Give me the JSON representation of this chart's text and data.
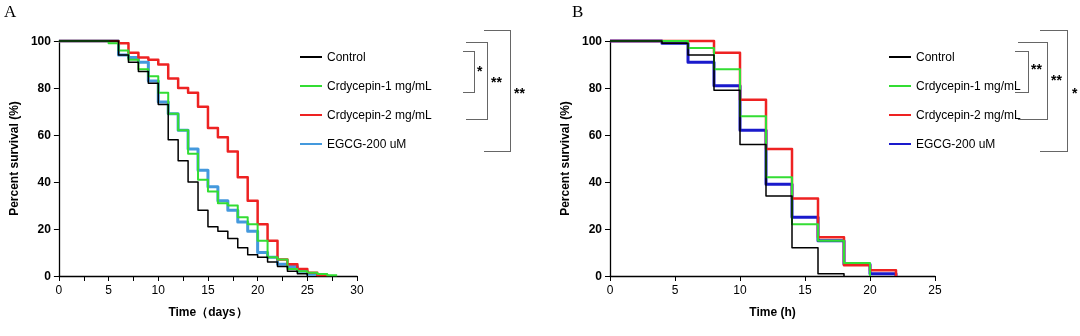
{
  "chart_data": [
    {
      "type": "step",
      "title": "A",
      "xlabel": "Time（days）",
      "ylabel": "Percent survival (%)",
      "xlim": [
        0,
        30
      ],
      "xticks": [
        0,
        {
          "value": 2.5,
          "label": null
        },
        5,
        {
          "value": 7.5,
          "label": null
        },
        10,
        {
          "value": 12.5,
          "label": null
        },
        15,
        {
          "value": 17.5,
          "label": null
        },
        20,
        {
          "value": 22.5,
          "label": null
        },
        25,
        {
          "value": 27.5,
          "label": null
        },
        30
      ],
      "ylim": [
        0,
        100
      ],
      "yticks": [
        0,
        20,
        40,
        60,
        80,
        100
      ],
      "legend": "right",
      "annotations": [
        "*",
        "**",
        "**"
      ],
      "series": [
        {
          "name": "Control",
          "color": "#000000",
          "x": [
            0,
            6,
            7,
            8,
            9,
            10,
            11,
            12,
            13,
            14,
            15,
            16,
            17,
            18,
            19,
            20,
            21,
            22,
            23,
            24,
            25
          ],
          "values": [
            100,
            94,
            91,
            87,
            82,
            73,
            58,
            49,
            40,
            28,
            21,
            19,
            16,
            12,
            9,
            8,
            6,
            4,
            2,
            1,
            0
          ]
        },
        {
          "name": "Crdycepin-1 mg/mL",
          "color": "#33dd33",
          "x": [
            0,
            5,
            6,
            7,
            8,
            9,
            10,
            11,
            12,
            13,
            14,
            15,
            16,
            17,
            18,
            19,
            20,
            21,
            22,
            23,
            24,
            25,
            26,
            27,
            28
          ],
          "values": [
            100,
            99,
            96,
            92,
            88,
            85,
            78,
            69,
            62,
            52,
            41,
            36,
            31,
            30,
            25,
            22,
            15,
            8,
            7,
            3,
            2,
            1.4,
            0.9,
            0.3,
            0
          ]
        },
        {
          "name": "Crdycepin-2 mg/mL",
          "color": "#ee2222",
          "x": [
            0,
            6,
            7,
            8,
            9,
            10,
            11,
            12,
            13,
            14,
            15,
            16,
            17,
            18,
            19,
            20,
            21,
            22,
            23,
            24,
            25,
            26,
            27
          ],
          "values": [
            100,
            99,
            95,
            93,
            92,
            90,
            84,
            80,
            78,
            72,
            63,
            59,
            53,
            42,
            32,
            22,
            15,
            7,
            5,
            3,
            1.4,
            0.4,
            0
          ]
        },
        {
          "name": "EGCG-200 uM",
          "color": "#4499dd",
          "x": [
            0,
            6,
            7,
            8,
            9,
            10,
            11,
            12,
            13,
            14,
            15,
            16,
            17,
            18,
            19,
            20,
            21,
            22,
            23,
            24,
            25,
            26
          ],
          "values": [
            100,
            94,
            93,
            91,
            83,
            74,
            69,
            62,
            54,
            45,
            38,
            32,
            28,
            23,
            19,
            10,
            8,
            5,
            4,
            2,
            0.7,
            0
          ]
        }
      ]
    },
    {
      "type": "step",
      "title": "B",
      "xlabel": "Time (h)",
      "ylabel": "Percent survival (%)",
      "xlim": [
        0,
        25
      ],
      "xticks": [
        0,
        5,
        10,
        15,
        20,
        25
      ],
      "ylim": [
        0,
        100
      ],
      "yticks": [
        0,
        20,
        40,
        60,
        80,
        100
      ],
      "legend": "right",
      "annotations": [
        "**",
        "**",
        "*"
      ],
      "series": [
        {
          "name": "Control",
          "color": "#000000",
          "x": [
            0,
            4,
            6,
            8,
            10,
            12,
            14,
            16,
            18
          ],
          "values": [
            100,
            99,
            94,
            79,
            56,
            34,
            12,
            1,
            0
          ]
        },
        {
          "name": "Crdycepin-1 mg/mL",
          "color": "#33dd33",
          "x": [
            0,
            6,
            8,
            10,
            12,
            14,
            16,
            18,
            20
          ],
          "values": [
            100,
            97,
            88,
            68,
            42,
            22,
            15,
            5.5,
            0
          ]
        },
        {
          "name": "Crdycepin-2 mg/mL",
          "color": "#ee2222",
          "x": [
            0,
            8,
            10,
            12,
            14,
            16,
            18,
            20,
            22
          ],
          "values": [
            100,
            95,
            75,
            54,
            33,
            16.5,
            4.6,
            2.5,
            0
          ]
        },
        {
          "name": "EGCG-200 uM",
          "color": "#1a1acc",
          "x": [
            0,
            4,
            6,
            8,
            10,
            12,
            14,
            16,
            18,
            20,
            22
          ],
          "values": [
            100,
            99,
            91,
            81,
            62,
            39,
            25,
            15,
            5,
            1,
            0
          ]
        }
      ]
    }
  ]
}
